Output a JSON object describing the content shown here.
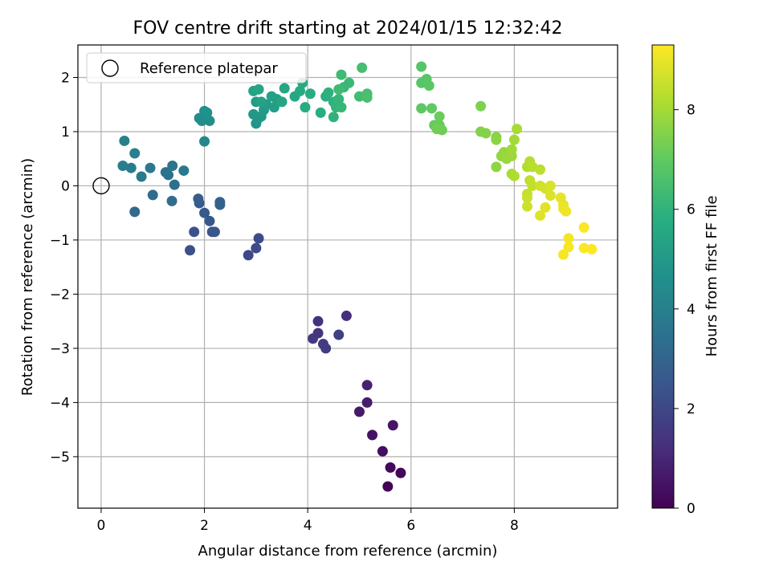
{
  "chart_data": {
    "type": "scatter",
    "title": "FOV centre drift starting at 2024/01/15 12:32:42",
    "xlabel": "Angular distance from reference (arcmin)",
    "ylabel": "Rotation from reference (arcmin)",
    "xlim": [
      -0.45,
      10.0
    ],
    "ylim": [
      -5.95,
      2.6
    ],
    "xticks": [
      0,
      2,
      4,
      6,
      8
    ],
    "yticks": [
      -5,
      -4,
      -3,
      -2,
      -1,
      0,
      1,
      2
    ],
    "grid": true,
    "legend": {
      "position": "top-left",
      "entries": [
        "Reference platepar"
      ]
    },
    "reference_point": {
      "x": 0,
      "y": 0
    },
    "colorbar": {
      "label": "Hours from first FF file",
      "colormap": "viridis",
      "range": [
        0,
        9.3
      ],
      "ticks": [
        0,
        2,
        4,
        6,
        8
      ]
    },
    "points": [
      [
        5.55,
        -5.55,
        0.05
      ],
      [
        5.8,
        -5.3,
        0.15
      ],
      [
        5.6,
        -5.2,
        0.25
      ],
      [
        5.45,
        -4.9,
        0.35
      ],
      [
        5.25,
        -4.6,
        0.45
      ],
      [
        5.65,
        -4.42,
        0.55
      ],
      [
        5.0,
        -4.17,
        0.65
      ],
      [
        5.15,
        -4.0,
        0.75
      ],
      [
        5.15,
        -3.68,
        0.85
      ],
      [
        4.75,
        -2.4,
        1.2
      ],
      [
        4.2,
        -2.5,
        1.3
      ],
      [
        4.2,
        -2.72,
        1.4
      ],
      [
        4.1,
        -2.82,
        1.5
      ],
      [
        4.3,
        -2.92,
        1.6
      ],
      [
        4.35,
        -3.0,
        1.65
      ],
      [
        4.6,
        -2.75,
        1.75
      ],
      [
        2.85,
        -1.28,
        2.0
      ],
      [
        3.0,
        -1.15,
        2.1
      ],
      [
        3.05,
        -0.97,
        2.15
      ],
      [
        1.72,
        -1.19,
        2.25
      ],
      [
        1.8,
        -0.85,
        2.3
      ],
      [
        2.15,
        -0.85,
        2.4
      ],
      [
        2.2,
        -0.85,
        2.5
      ],
      [
        2.1,
        -0.65,
        2.55
      ],
      [
        2.0,
        -0.5,
        2.6
      ],
      [
        1.9,
        -0.32,
        2.7
      ],
      [
        1.88,
        -0.24,
        2.75
      ],
      [
        2.3,
        -0.3,
        2.85
      ],
      [
        2.3,
        -0.35,
        2.9
      ],
      [
        0.65,
        -0.48,
        3.2
      ],
      [
        1.0,
        -0.17,
        3.3
      ],
      [
        1.37,
        -0.28,
        3.35
      ],
      [
        1.42,
        0.02,
        3.4
      ],
      [
        1.3,
        0.2,
        3.5
      ],
      [
        1.25,
        0.25,
        3.55
      ],
      [
        1.38,
        0.37,
        3.6
      ],
      [
        1.6,
        0.28,
        3.7
      ],
      [
        0.95,
        0.33,
        3.75
      ],
      [
        0.78,
        0.17,
        3.8
      ],
      [
        0.58,
        0.33,
        3.9
      ],
      [
        0.42,
        0.37,
        3.95
      ],
      [
        0.65,
        0.6,
        4.0
      ],
      [
        0.45,
        0.83,
        4.05
      ],
      [
        2.0,
        0.82,
        4.25
      ],
      [
        1.9,
        1.25,
        4.45
      ],
      [
        1.95,
        1.2,
        4.5
      ],
      [
        2.1,
        1.2,
        4.55
      ],
      [
        2.0,
        1.38,
        4.6
      ],
      [
        2.05,
        1.35,
        4.65
      ],
      [
        3.0,
        1.15,
        4.8
      ],
      [
        3.05,
        1.25,
        4.85
      ],
      [
        2.95,
        1.32,
        4.9
      ],
      [
        3.1,
        1.28,
        4.95
      ],
      [
        3.15,
        1.4,
        5.0
      ],
      [
        3.0,
        1.55,
        5.05
      ],
      [
        3.2,
        1.5,
        5.1
      ],
      [
        3.35,
        1.45,
        5.15
      ],
      [
        3.4,
        1.6,
        5.2
      ],
      [
        3.3,
        1.65,
        5.25
      ],
      [
        3.1,
        1.55,
        5.3
      ],
      [
        2.95,
        1.75,
        5.35
      ],
      [
        3.05,
        1.78,
        5.4
      ],
      [
        3.5,
        1.55,
        5.45
      ],
      [
        3.55,
        1.8,
        5.5
      ],
      [
        3.75,
        1.65,
        5.55
      ],
      [
        3.85,
        1.75,
        5.6
      ],
      [
        3.9,
        1.9,
        5.65
      ],
      [
        3.95,
        1.45,
        5.7
      ],
      [
        4.05,
        1.7,
        5.75
      ],
      [
        4.25,
        1.35,
        5.8
      ],
      [
        4.35,
        1.65,
        5.85
      ],
      [
        4.4,
        1.72,
        5.9
      ],
      [
        4.5,
        1.55,
        5.95
      ],
      [
        4.5,
        1.27,
        6.0
      ],
      [
        4.55,
        1.45,
        6.05
      ],
      [
        4.6,
        1.6,
        6.1
      ],
      [
        4.65,
        1.45,
        6.15
      ],
      [
        4.7,
        1.82,
        6.2
      ],
      [
        4.8,
        1.9,
        6.25
      ],
      [
        4.65,
        2.05,
        6.3
      ],
      [
        4.6,
        1.78,
        6.35
      ],
      [
        5.0,
        1.65,
        6.4
      ],
      [
        5.05,
        2.18,
        6.45
      ],
      [
        5.15,
        1.7,
        6.5
      ],
      [
        5.15,
        1.63,
        6.55
      ],
      [
        6.2,
        2.2,
        6.75
      ],
      [
        6.2,
        1.9,
        6.8
      ],
      [
        6.3,
        1.97,
        6.85
      ],
      [
        6.35,
        1.85,
        6.9
      ],
      [
        6.2,
        1.43,
        6.95
      ],
      [
        6.4,
        1.43,
        7.0
      ],
      [
        6.45,
        1.12,
        7.05
      ],
      [
        6.55,
        1.12,
        7.1
      ],
      [
        6.55,
        1.28,
        7.15
      ],
      [
        6.6,
        1.03,
        7.2
      ],
      [
        6.5,
        1.05,
        7.25
      ],
      [
        7.35,
        1.47,
        7.45
      ],
      [
        7.35,
        1.0,
        7.5
      ],
      [
        7.45,
        0.97,
        7.55
      ],
      [
        7.65,
        0.9,
        7.6
      ],
      [
        7.65,
        0.85,
        7.65
      ],
      [
        7.65,
        0.35,
        7.7
      ],
      [
        7.75,
        0.55,
        7.75
      ],
      [
        7.8,
        0.62,
        7.8
      ],
      [
        7.85,
        0.5,
        7.85
      ],
      [
        7.95,
        0.55,
        7.9
      ],
      [
        7.95,
        0.67,
        7.95
      ],
      [
        8.0,
        0.85,
        8.0
      ],
      [
        8.05,
        1.05,
        8.05
      ],
      [
        7.95,
        0.22,
        8.1
      ],
      [
        8.0,
        0.18,
        8.15
      ],
      [
        8.25,
        0.35,
        8.2
      ],
      [
        8.3,
        0.45,
        8.25
      ],
      [
        8.35,
        0.35,
        8.3
      ],
      [
        8.5,
        0.3,
        8.35
      ],
      [
        8.3,
        0.1,
        8.4
      ],
      [
        8.35,
        0.0,
        8.45
      ],
      [
        8.25,
        -0.15,
        8.5
      ],
      [
        8.25,
        -0.22,
        8.55
      ],
      [
        8.25,
        -0.38,
        8.6
      ],
      [
        8.5,
        0.0,
        8.65
      ],
      [
        8.6,
        -0.05,
        8.7
      ],
      [
        8.7,
        0.0,
        8.75
      ],
      [
        8.7,
        -0.18,
        8.8
      ],
      [
        8.5,
        -0.55,
        8.85
      ],
      [
        8.6,
        -0.4,
        8.9
      ],
      [
        8.9,
        -0.22,
        8.95
      ],
      [
        8.95,
        -0.35,
        9.0
      ],
      [
        8.95,
        -0.42,
        9.05
      ],
      [
        9.0,
        -0.47,
        9.1
      ],
      [
        9.05,
        -0.97,
        9.15
      ],
      [
        9.05,
        -1.13,
        9.2
      ],
      [
        8.95,
        -1.27,
        9.22
      ],
      [
        9.35,
        -0.77,
        9.25
      ],
      [
        9.35,
        -1.15,
        9.27
      ],
      [
        9.5,
        -1.17,
        9.3
      ]
    ]
  }
}
